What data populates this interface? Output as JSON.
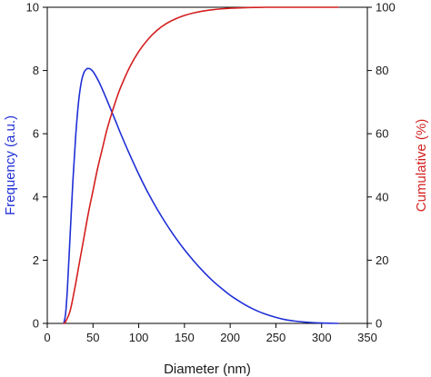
{
  "chart_data": {
    "type": "line",
    "title": "",
    "xlabel": "Diameter (nm)",
    "ylabel_left": "Frequency (a.u.)",
    "ylabel_right": "Cumulative (%)",
    "xlim": [
      0,
      350
    ],
    "ylim_left": [
      0,
      10
    ],
    "ylim_right": [
      0,
      100
    ],
    "x_ticks": [
      0,
      50,
      100,
      150,
      200,
      250,
      300,
      350
    ],
    "y_left_ticks": [
      0,
      2,
      4,
      6,
      8,
      10
    ],
    "y_right_ticks": [
      0,
      20,
      40,
      60,
      80,
      100
    ],
    "grid": false,
    "legend": "none",
    "series": [
      {
        "axis": "left",
        "color": "#1f2fd6",
        "x": [
          18,
          20,
          22,
          25,
          28,
          31,
          34,
          37,
          40,
          43,
          46,
          49,
          52,
          56,
          60,
          65,
          70,
          75,
          80,
          90,
          100,
          110,
          120,
          130,
          140,
          150,
          160,
          170,
          180,
          190,
          200,
          210,
          220,
          230,
          240,
          250,
          260,
          270,
          280,
          290,
          300,
          310,
          318
        ],
        "values": [
          0,
          0.3,
          1.1,
          2.8,
          4.5,
          5.9,
          6.95,
          7.6,
          7.93,
          8.05,
          8.06,
          8.0,
          7.88,
          7.67,
          7.42,
          7.08,
          6.73,
          6.38,
          6.02,
          5.35,
          4.72,
          4.14,
          3.62,
          3.15,
          2.72,
          2.33,
          1.98,
          1.66,
          1.37,
          1.12,
          0.89,
          0.7,
          0.53,
          0.39,
          0.28,
          0.19,
          0.12,
          0.075,
          0.045,
          0.025,
          0.012,
          0.005,
          0
        ]
      },
      {
        "axis": "right",
        "color": "#d41f1f",
        "x": [
          18,
          20,
          25,
          30,
          35,
          40,
          45,
          50,
          55,
          60,
          65,
          70,
          75,
          80,
          90,
          100,
          110,
          120,
          130,
          140,
          150,
          160,
          170,
          180,
          190,
          200,
          210,
          220,
          230,
          240,
          250,
          260,
          280,
          300,
          318
        ],
        "values": [
          0,
          0.5,
          4,
          11,
          19,
          27,
          35,
          42,
          49,
          55,
          61,
          66,
          70.5,
          74.5,
          81,
          86,
          89.8,
          92.7,
          94.8,
          96.3,
          97.4,
          98.2,
          98.8,
          99.2,
          99.5,
          99.7,
          99.8,
          99.9,
          99.95,
          100,
          100,
          100,
          100,
          100,
          100
        ]
      }
    ]
  }
}
